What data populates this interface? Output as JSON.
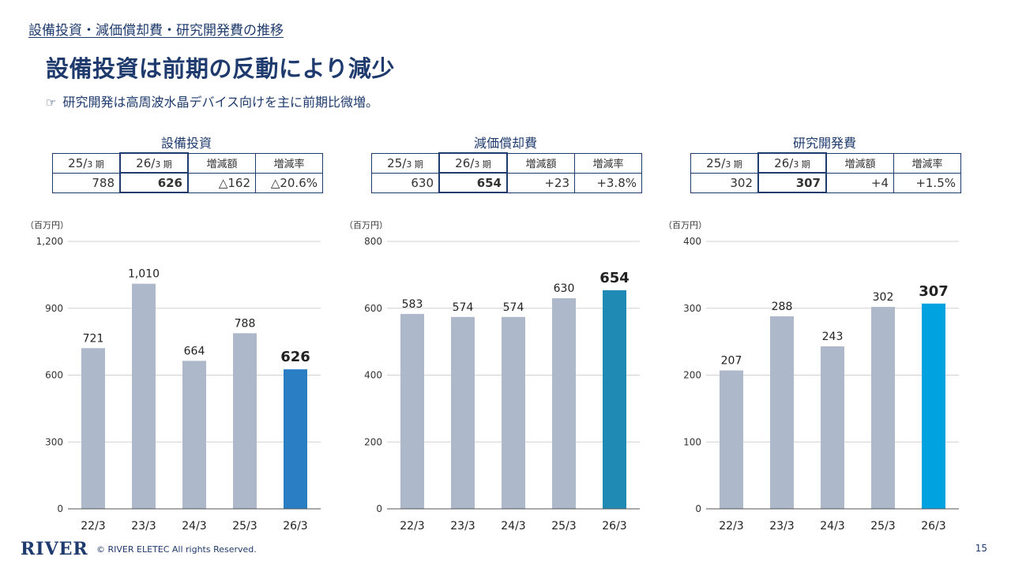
{
  "section_title": "設備投資・減価償却費・研究開発費の推移",
  "headline": "設備投資は前期の反動により減少",
  "bullet": {
    "icon": "☞",
    "text": "研究開発は高周波水晶デバイス向けを主に前期比微増。"
  },
  "tables": [
    {
      "title": "設備投資",
      "headers": [
        [
          "25/",
          "3 期"
        ],
        [
          "26/",
          "3 期"
        ],
        [
          "増減額",
          ""
        ],
        [
          "増減率",
          ""
        ]
      ],
      "values": [
        "788",
        "626",
        "△162",
        "△20.6%"
      ]
    },
    {
      "title": "減価償却費",
      "headers": [
        [
          "25/",
          "3 期"
        ],
        [
          "26/",
          "3 期"
        ],
        [
          "増減額",
          ""
        ],
        [
          "増減率",
          ""
        ]
      ],
      "values": [
        "630",
        "654",
        "+23",
        "+3.8%"
      ]
    },
    {
      "title": "研究開発費",
      "headers": [
        [
          "25/",
          "3 期"
        ],
        [
          "26/",
          "3 期"
        ],
        [
          "増減額",
          ""
        ],
        [
          "増減率",
          ""
        ]
      ],
      "values": [
        "302",
        "307",
        "+4",
        "+1.5%"
      ]
    }
  ],
  "chart_data": [
    {
      "type": "bar",
      "unit_label": "（百万円）",
      "categories": [
        "22/3",
        "23/3",
        "24/3",
        "25/3",
        "26/3"
      ],
      "values": [
        721,
        1010,
        664,
        788,
        626
      ],
      "value_labels": [
        "721",
        "1,010",
        "664",
        "788",
        "626"
      ],
      "yticks": [
        "0",
        "300",
        "600",
        "900",
        "1,200"
      ],
      "ylim": [
        0,
        1200
      ],
      "bar_color": "#adb9ca",
      "highlight_color": "#2a7fc4",
      "grid": true
    },
    {
      "type": "bar",
      "unit_label": "（百万円）",
      "categories": [
        "22/3",
        "23/3",
        "24/3",
        "25/3",
        "26/3"
      ],
      "values": [
        583,
        574,
        574,
        630,
        654
      ],
      "value_labels": [
        "583",
        "574",
        "574",
        "630",
        "654"
      ],
      "yticks": [
        "0",
        "200",
        "400",
        "600",
        "800"
      ],
      "ylim": [
        0,
        800
      ],
      "bar_color": "#adb9ca",
      "highlight_color": "#1f8ab4",
      "grid": true
    },
    {
      "type": "bar",
      "unit_label": "（百万円）",
      "categories": [
        "22/3",
        "23/3",
        "24/3",
        "25/3",
        "26/3"
      ],
      "values": [
        207,
        288,
        243,
        302,
        307
      ],
      "value_labels": [
        "207",
        "288",
        "243",
        "302",
        "307"
      ],
      "yticks": [
        "0",
        "100",
        "200",
        "300",
        "400"
      ],
      "ylim": [
        0,
        400
      ],
      "bar_color": "#adb9ca",
      "highlight_color": "#00a3e0",
      "grid": true
    }
  ],
  "footer": {
    "logo": "RIVER",
    "copyright": "© RIVER ELETEC All rights Reserved.",
    "page": "15"
  }
}
